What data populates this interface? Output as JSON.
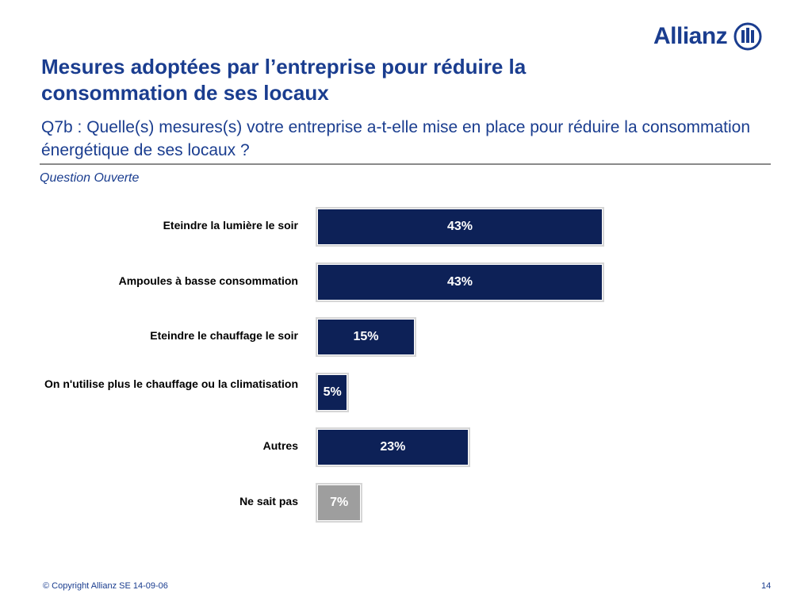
{
  "logo": {
    "text": "Allianz"
  },
  "header": {
    "title": "Mesures adoptées par l’entreprise pour réduire la consommation de ses locaux",
    "subtitle": "Q7b : Quelle(s) mesures(s) votre entreprise a-t-elle mise en place pour réduire la consommation énergétique de ses locaux ?",
    "note": "Question Ouverte"
  },
  "colors": {
    "brand": "#1a3d8f",
    "bar": "#0d2157",
    "bar_muted": "#9e9e9e"
  },
  "chart_data": {
    "type": "bar",
    "orientation": "horizontal",
    "categories": [
      "Eteindre la lumière le soir",
      "Ampoules à basse consommation",
      "Eteindre le chauffage le soir",
      "On n'utilise plus le chauffage ou la climatisation",
      "Autres",
      "Ne sait pas"
    ],
    "values": [
      43,
      43,
      15,
      5,
      23,
      7
    ],
    "value_labels": [
      "43%",
      "43%",
      "15%",
      "5%",
      "23%",
      "7%"
    ],
    "unit": "%",
    "muted_category": "Ne sait pas",
    "xlim": [
      0,
      43
    ],
    "grid": false,
    "legend": "none"
  },
  "footer": {
    "copyright": "© Copyright Allianz SE 14-09-06",
    "page_number": "14"
  }
}
